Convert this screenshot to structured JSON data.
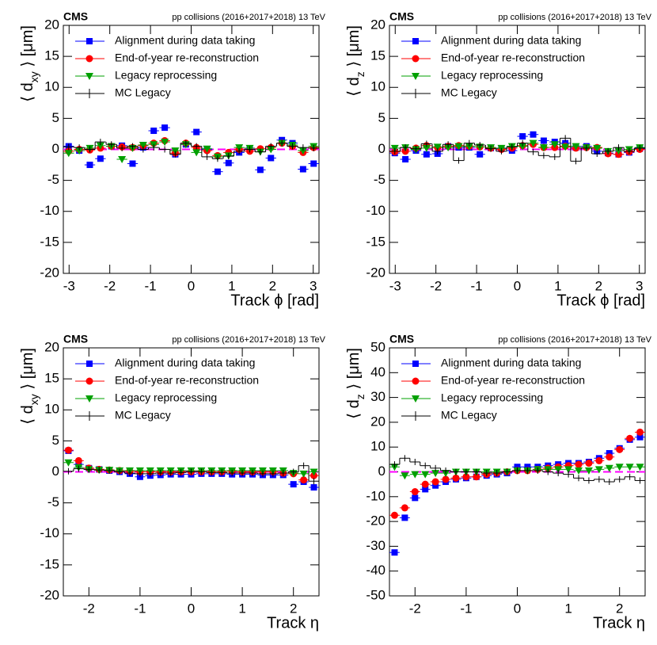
{
  "chart_data": [
    {
      "type": "scatter",
      "title": "CMS",
      "subtitle": "pp collisions (2016+2017+2018) 13 TeV",
      "xlabel": "Track ϕ [rad]",
      "ylabel": [
        "⟨ d",
        "xy",
        " ⟩ [μm]"
      ],
      "x": [
        -3.01,
        -2.75,
        -2.49,
        -2.23,
        -1.96,
        -1.7,
        -1.44,
        -1.18,
        -0.92,
        -0.65,
        -0.39,
        -0.13,
        0.13,
        0.39,
        0.65,
        0.92,
        1.18,
        1.44,
        1.7,
        1.96,
        2.23,
        2.49,
        2.75,
        3.01
      ],
      "xlim": [
        -3.1416,
        3.1416
      ],
      "xticks": [
        -3,
        -2,
        -1,
        0,
        1,
        2,
        3
      ],
      "ylim": [
        -20,
        20
      ],
      "yticks": [
        -20,
        -15,
        -10,
        -5,
        0,
        5,
        10,
        15,
        20
      ],
      "reference_line": {
        "value": 0,
        "color": "#ff00ff"
      },
      "series": [
        {
          "name": "Alignment during data taking",
          "color": "#0000ff",
          "marker": "square",
          "values": [
            0.5,
            -0.2,
            -2.5,
            -1.5,
            0.5,
            0.6,
            -2.3,
            0.3,
            3.0,
            3.5,
            -0.8,
            0.8,
            2.8,
            0,
            -3.6,
            -2.2,
            -0.5,
            0,
            -3.3,
            -1.4,
            1.5,
            1.0,
            -3.2,
            -2.3
          ]
        },
        {
          "name": "End-of-year re-reconstruction",
          "color": "#ff0000",
          "marker": "circle",
          "values": [
            -0.3,
            0,
            -0.1,
            0.2,
            0.5,
            0.4,
            0.3,
            0.6,
            1.0,
            1.4,
            -0.6,
            1.0,
            0.3,
            -0.2,
            -1.0,
            -0.5,
            0,
            -0.3,
            0.1,
            0.3,
            1.0,
            0.5,
            -0.5,
            0.3
          ]
        },
        {
          "name": "Legacy reprocessing",
          "color": "#00a000",
          "marker": "triangle-down",
          "values": [
            -0.6,
            -0.2,
            0.2,
            0.6,
            0.5,
            -1.6,
            0.2,
            0.7,
            0.8,
            1.2,
            -0.2,
            0.8,
            -0.5,
            0.1,
            -1.2,
            -1.0,
            0.3,
            0.2,
            -0.4,
            0,
            1.0,
            0.7,
            -0.2,
            0.5
          ]
        },
        {
          "name": "MC Legacy",
          "color": "#000000",
          "marker": "step",
          "values": [
            0.4,
            0.3,
            0,
            1.2,
            0.8,
            0.2,
            0.5,
            0,
            0.3,
            0,
            -0.8,
            1.0,
            0.5,
            -1.2,
            -1.5,
            -1.1,
            -0.3,
            0,
            -0.4,
            0.5,
            1.0,
            0.5,
            0.3,
            0.2
          ]
        }
      ]
    },
    {
      "type": "scatter",
      "title": "CMS",
      "subtitle": "pp collisions (2016+2017+2018) 13 TeV",
      "xlabel": "Track ϕ [rad]",
      "ylabel": [
        "⟨ d",
        "z",
        " ⟩ [μm]"
      ],
      "x": [
        -3.01,
        -2.75,
        -2.49,
        -2.23,
        -1.96,
        -1.7,
        -1.44,
        -1.18,
        -0.92,
        -0.65,
        -0.39,
        -0.13,
        0.13,
        0.39,
        0.65,
        0.92,
        1.18,
        1.44,
        1.7,
        1.96,
        2.23,
        2.49,
        2.75,
        3.01
      ],
      "xlim": [
        -3.1416,
        3.1416
      ],
      "xticks": [
        -3,
        -2,
        -1,
        0,
        1,
        2,
        3
      ],
      "ylim": [
        -20,
        20
      ],
      "yticks": [
        -20,
        -15,
        -10,
        -5,
        0,
        5,
        10,
        15,
        20
      ],
      "reference_line": {
        "value": 0,
        "color": "#ff00ff"
      },
      "series": [
        {
          "name": "Alignment during data taking",
          "color": "#0000ff",
          "marker": "square",
          "values": [
            -0.6,
            -1.6,
            -0.2,
            -0.8,
            -0.7,
            0.5,
            0.3,
            0.3,
            -0.8,
            0.2,
            0.1,
            -0.2,
            2.1,
            2.4,
            1.4,
            1.2,
            1.0,
            0.3,
            0.5,
            -0.3,
            -0.6,
            -0.8,
            -0.5,
            0.1
          ]
        },
        {
          "name": "End-of-year re-reconstruction",
          "color": "#ff0000",
          "marker": "circle",
          "values": [
            -0.4,
            -0.3,
            0.2,
            0.6,
            0.3,
            0.5,
            0.6,
            0.5,
            0.4,
            0.2,
            0,
            0.2,
            0.6,
            0.8,
            0.3,
            0.3,
            0.5,
            0.2,
            0.3,
            0.3,
            -0.7,
            -0.8,
            -0.4,
            0
          ]
        },
        {
          "name": "Legacy reprocessing",
          "color": "#00a000",
          "marker": "triangle-down",
          "values": [
            0.2,
            0.3,
            0,
            0.2,
            0.4,
            0.3,
            0.5,
            0.5,
            0.4,
            0.3,
            0.2,
            0.5,
            0.5,
            1.0,
            0.3,
            0.8,
            0.4,
            0.5,
            0.3,
            0.2,
            -0.3,
            -0.2,
            0,
            0.3
          ]
        },
        {
          "name": "MC Legacy",
          "color": "#000000",
          "marker": "step",
          "values": [
            -0.3,
            0.3,
            0.1,
            0.9,
            -0.3,
            0.8,
            -1.8,
            1.0,
            0.7,
            0.1,
            -0.3,
            0.4,
            1.0,
            -0.4,
            -1.0,
            -1.2,
            1.8,
            -1.9,
            0.2,
            -0.7,
            -0.3,
            0.3,
            -0.3,
            0.2
          ]
        }
      ]
    },
    {
      "type": "scatter",
      "title": "CMS",
      "subtitle": "pp collisions (2016+2017+2018) 13 TeV",
      "xlabel": "Track η",
      "ylabel": [
        "⟨ d",
        "xy",
        " ⟩ [μm]"
      ],
      "x": [
        -2.4,
        -2.2,
        -2.0,
        -1.8,
        -1.6,
        -1.4,
        -1.2,
        -1.0,
        -0.8,
        -0.6,
        -0.4,
        -0.2,
        0,
        0.2,
        0.4,
        0.6,
        0.8,
        1.0,
        1.2,
        1.4,
        1.6,
        1.8,
        2.0,
        2.2,
        2.4
      ],
      "xlim": [
        -2.5,
        2.5
      ],
      "xticks": [
        -2,
        -1,
        0,
        1,
        2
      ],
      "ylim": [
        -20,
        20
      ],
      "yticks": [
        -20,
        -15,
        -10,
        -5,
        0,
        5,
        10,
        15,
        20
      ],
      "reference_line": {
        "value": 0,
        "color": "#ff00ff"
      },
      "series": [
        {
          "name": "Alignment during data taking",
          "color": "#0000ff",
          "marker": "square",
          "values": [
            3.4,
            1.2,
            0.6,
            0.4,
            0.2,
            0,
            -0.3,
            -0.8,
            -0.6,
            -0.5,
            -0.4,
            -0.4,
            -0.4,
            -0.3,
            -0.3,
            -0.3,
            -0.4,
            -0.4,
            -0.4,
            -0.5,
            -0.5,
            -0.5,
            -2.0,
            -1.6,
            -2.5
          ]
        },
        {
          "name": "End-of-year re-reconstruction",
          "color": "#ff0000",
          "marker": "circle",
          "values": [
            3.5,
            1.8,
            0.6,
            0.4,
            0.3,
            0.2,
            0.1,
            0,
            0,
            0,
            0,
            0,
            0,
            0,
            0,
            0,
            0.1,
            0,
            0,
            0,
            0,
            -0.2,
            -0.3,
            -1.3,
            -0.6
          ]
        },
        {
          "name": "Legacy reprocessing",
          "color": "#00a000",
          "marker": "triangle-down",
          "values": [
            1.5,
            0.7,
            0.4,
            0.3,
            0.3,
            0.2,
            0.2,
            0.2,
            0.2,
            0.2,
            0.2,
            0.2,
            0.2,
            0.2,
            0.2,
            0.2,
            0.2,
            0.2,
            0.2,
            0.2,
            0.2,
            0.2,
            -0.2,
            -0.3,
            0
          ]
        },
        {
          "name": "MC Legacy",
          "color": "#000000",
          "marker": "step",
          "values": [
            0.1,
            0.5,
            0.4,
            0.3,
            0.2,
            0,
            -0.2,
            -0.3,
            -0.3,
            -0.2,
            -0.2,
            -0.1,
            0,
            0,
            -0.1,
            -0.1,
            -0.2,
            -0.2,
            -0.2,
            -0.3,
            -0.3,
            -0.2,
            0,
            1.0,
            -1.5
          ]
        }
      ]
    },
    {
      "type": "scatter",
      "title": "CMS",
      "subtitle": "pp collisions (2016+2017+2018) 13 TeV",
      "xlabel": "Track η",
      "ylabel": [
        "⟨ d",
        "z",
        " ⟩ [μm]"
      ],
      "x": [
        -2.4,
        -2.2,
        -2.0,
        -1.8,
        -1.6,
        -1.4,
        -1.2,
        -1.0,
        -0.8,
        -0.6,
        -0.4,
        -0.2,
        0,
        0.2,
        0.4,
        0.6,
        0.8,
        1.0,
        1.2,
        1.4,
        1.6,
        1.8,
        2.0,
        2.2,
        2.4
      ],
      "xlim": [
        -2.5,
        2.5
      ],
      "xticks": [
        -2,
        -1,
        0,
        1,
        2
      ],
      "ylim": [
        -50,
        50
      ],
      "yticks": [
        -50,
        -40,
        -30,
        -20,
        -10,
        0,
        10,
        20,
        30,
        40,
        50
      ],
      "reference_line": {
        "value": 0,
        "color": "#ff00ff"
      },
      "series": [
        {
          "name": "Alignment during data taking",
          "color": "#0000ff",
          "marker": "square",
          "values": [
            -32.5,
            -18.5,
            -10.5,
            -7,
            -5.5,
            -4,
            -3,
            -2.5,
            -2,
            -1.5,
            -1,
            -0.5,
            2,
            2,
            2,
            2.5,
            3,
            3.5,
            3.5,
            4,
            5.5,
            7.5,
            9.5,
            13,
            14
          ]
        },
        {
          "name": "End-of-year re-reconstruction",
          "color": "#ff0000",
          "marker": "circle",
          "values": [
            -17.5,
            -14.5,
            -8,
            -5,
            -4,
            -3,
            -2.5,
            -2,
            -2,
            -1,
            -0.5,
            0,
            0.5,
            0.5,
            1,
            1.5,
            2,
            2.5,
            3,
            3.5,
            4.5,
            6,
            9,
            13.5,
            16
          ]
        },
        {
          "name": "Legacy reprocessing",
          "color": "#00a000",
          "marker": "triangle-down",
          "values": [
            2,
            -1.5,
            -1,
            -1,
            -0.5,
            -0.5,
            0,
            0,
            0,
            0,
            0,
            0,
            0.5,
            0.5,
            1,
            1,
            1,
            1,
            0.5,
            0.5,
            1,
            1.5,
            2,
            2,
            2
          ]
        },
        {
          "name": "MC Legacy",
          "color": "#000000",
          "marker": "step",
          "values": [
            3,
            5.5,
            4,
            2.5,
            1.5,
            0.5,
            0,
            0,
            0,
            -0.5,
            -0.5,
            0,
            0.5,
            0.5,
            0.5,
            0,
            -0.5,
            -1,
            -2.5,
            -3.5,
            -3,
            -4,
            -3,
            -2,
            -3.5
          ]
        }
      ]
    }
  ]
}
